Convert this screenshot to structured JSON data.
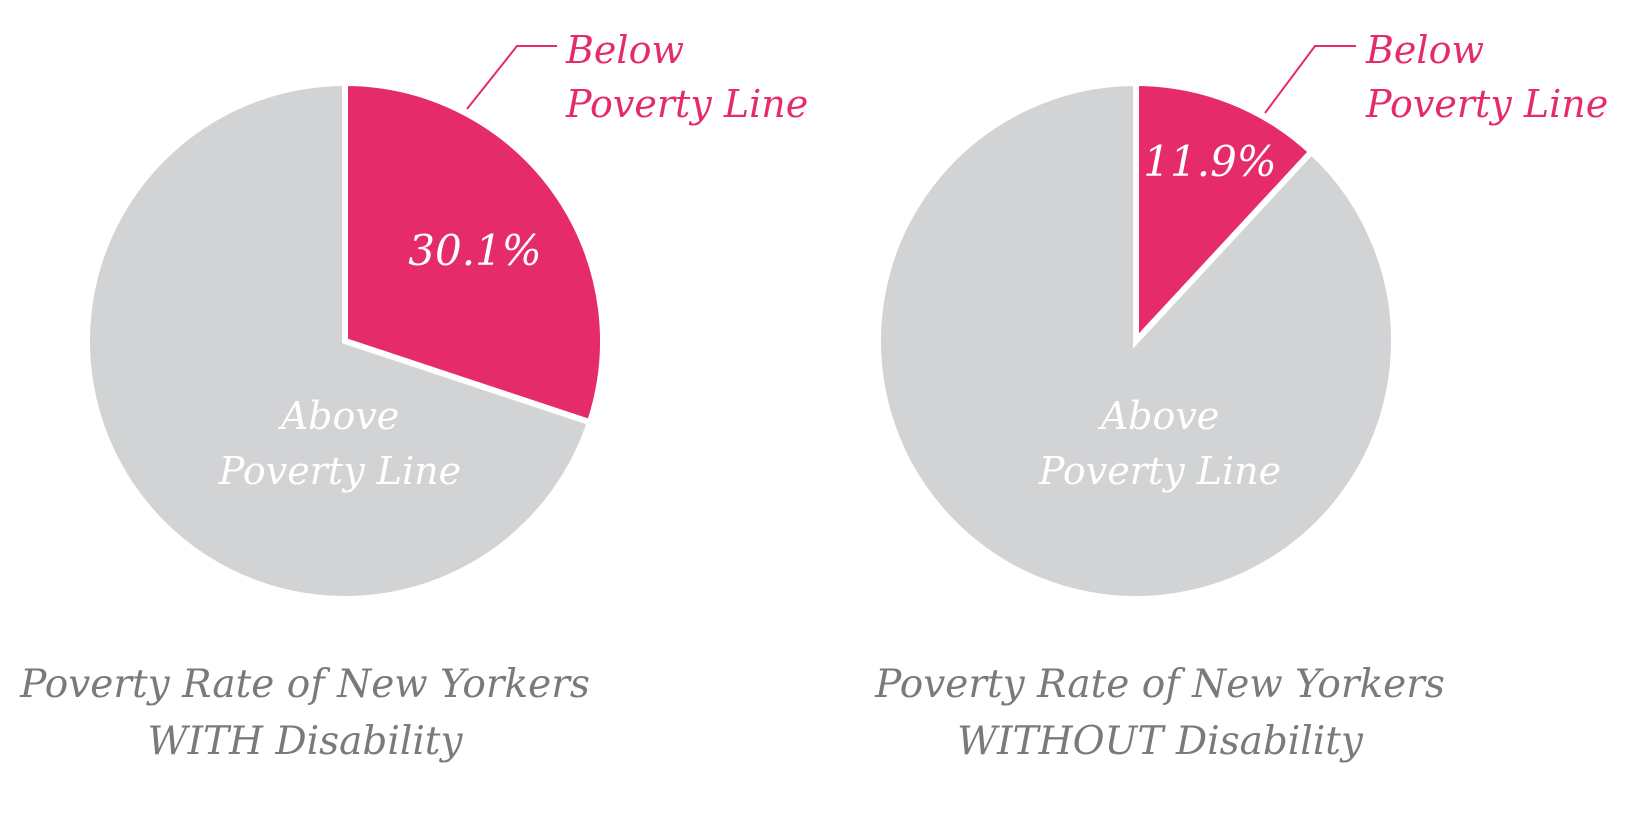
{
  "chart_data": [
    {
      "type": "pie",
      "title": "Poverty Rate of New Yorkers WITH Disability",
      "title_lines": [
        "Poverty Rate of New Yorkers",
        "WITH Disability"
      ],
      "slices": [
        {
          "label": "Below Poverty Line",
          "value": 30.1,
          "value_label": "30.1%",
          "color": "#e62b6b"
        },
        {
          "label": "Above Poverty Line",
          "value": 69.9,
          "color": "#d2d3d5"
        }
      ],
      "slice_labels": {
        "below": [
          "Below",
          "Poverty Line"
        ],
        "above": [
          "Above",
          "Poverty Line"
        ]
      }
    },
    {
      "type": "pie",
      "title": "Poverty Rate of New Yorkers WITHOUT Disability",
      "title_lines": [
        "Poverty Rate of New Yorkers",
        "WITHOUT Disability"
      ],
      "slices": [
        {
          "label": "Below Poverty Line",
          "value": 11.9,
          "value_label": "11.9%",
          "color": "#e62b6b"
        },
        {
          "label": "Above Poverty Line",
          "value": 88.1,
          "color": "#d2d3d5"
        }
      ],
      "slice_labels": {
        "below": [
          "Below",
          "Poverty Line"
        ],
        "above": [
          "Above",
          "Poverty Line"
        ]
      }
    }
  ]
}
